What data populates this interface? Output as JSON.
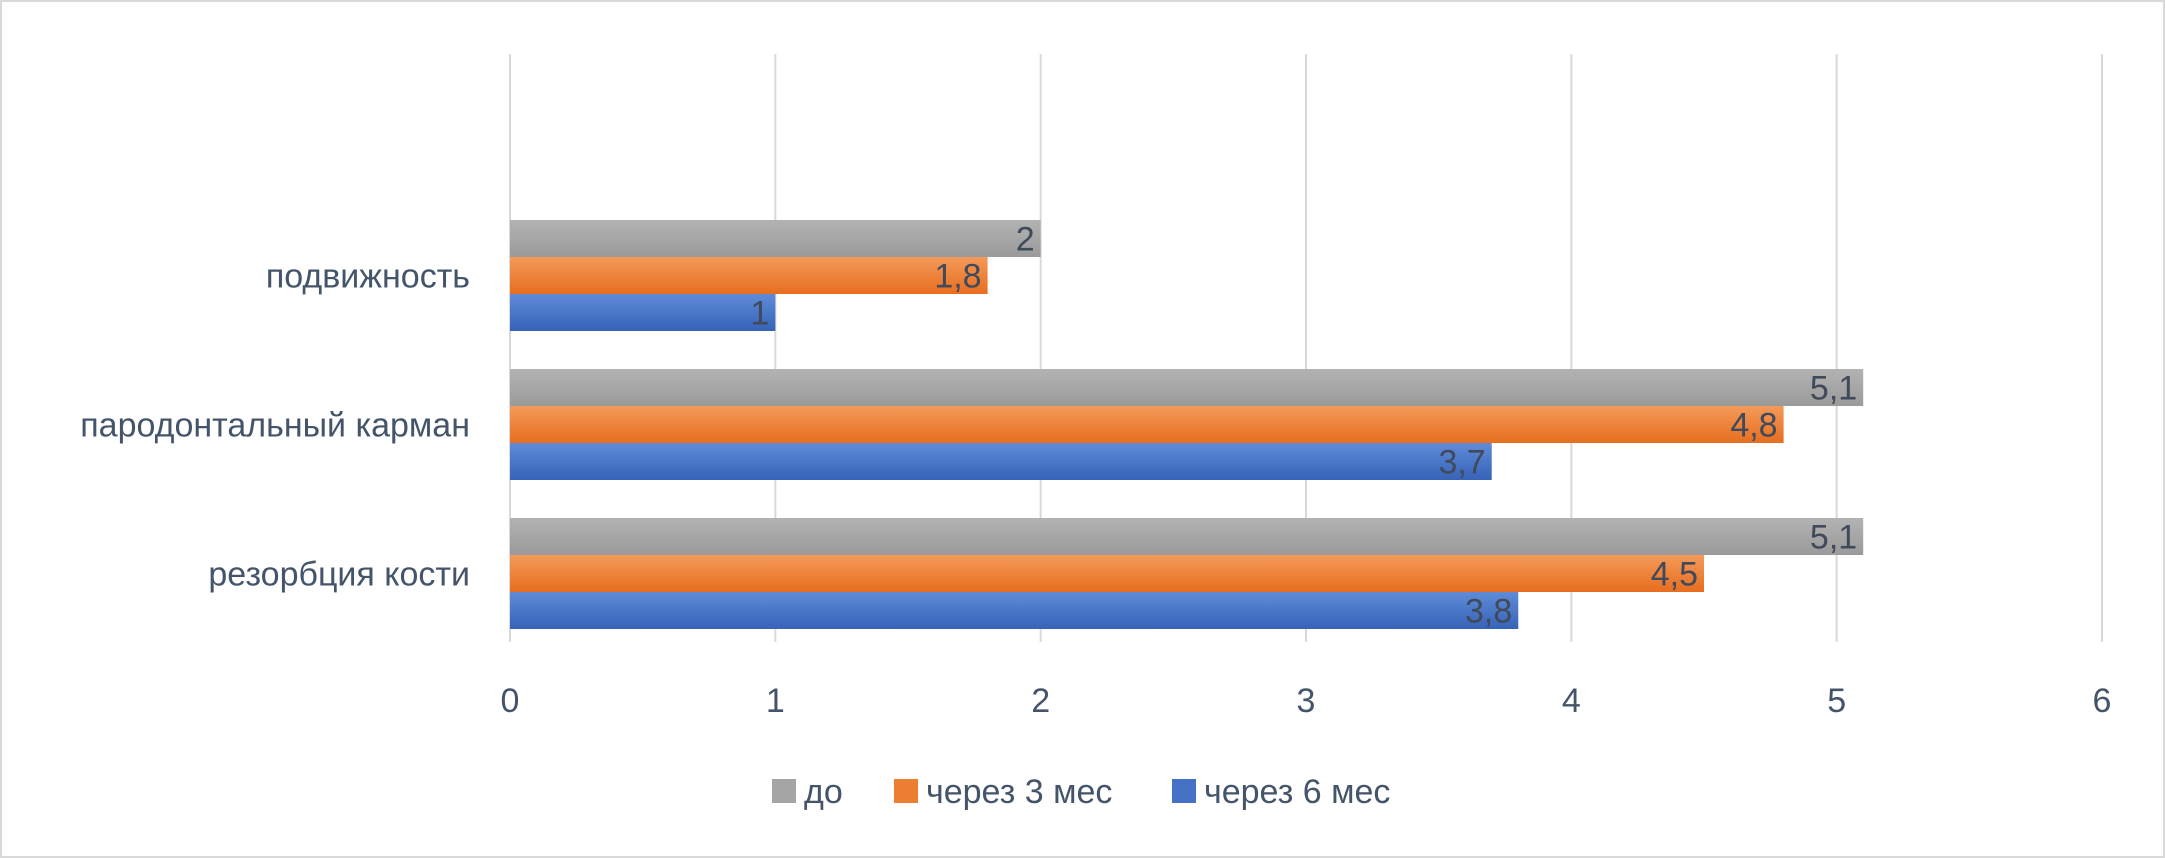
{
  "chart_data": {
    "type": "bar",
    "orientation": "horizontal",
    "title": "",
    "xlabel": "",
    "ylabel": "",
    "categories": [
      "подвижность",
      "пародонтальный карман",
      "резорбция кости"
    ],
    "series": [
      {
        "name": "до",
        "color": "#a5a5a5",
        "values": [
          2,
          5.1,
          5.1
        ],
        "labels": [
          "2",
          "5,1",
          "5,1"
        ]
      },
      {
        "name": "через 3 мес",
        "color": "#ed7d31",
        "values": [
          1.8,
          4.8,
          4.5
        ],
        "labels": [
          "1,8",
          "4,8",
          "4,5"
        ]
      },
      {
        "name": "через 6 мес",
        "color": "#4472c4",
        "values": [
          1,
          3.7,
          3.8
        ],
        "labels": [
          "1",
          "3,7",
          "3,8"
        ]
      }
    ],
    "xlim": [
      0,
      6
    ],
    "xticks": [
      "0",
      "1",
      "2",
      "3",
      "4",
      "5",
      "6"
    ],
    "grid": true,
    "legend_position": "bottom"
  }
}
